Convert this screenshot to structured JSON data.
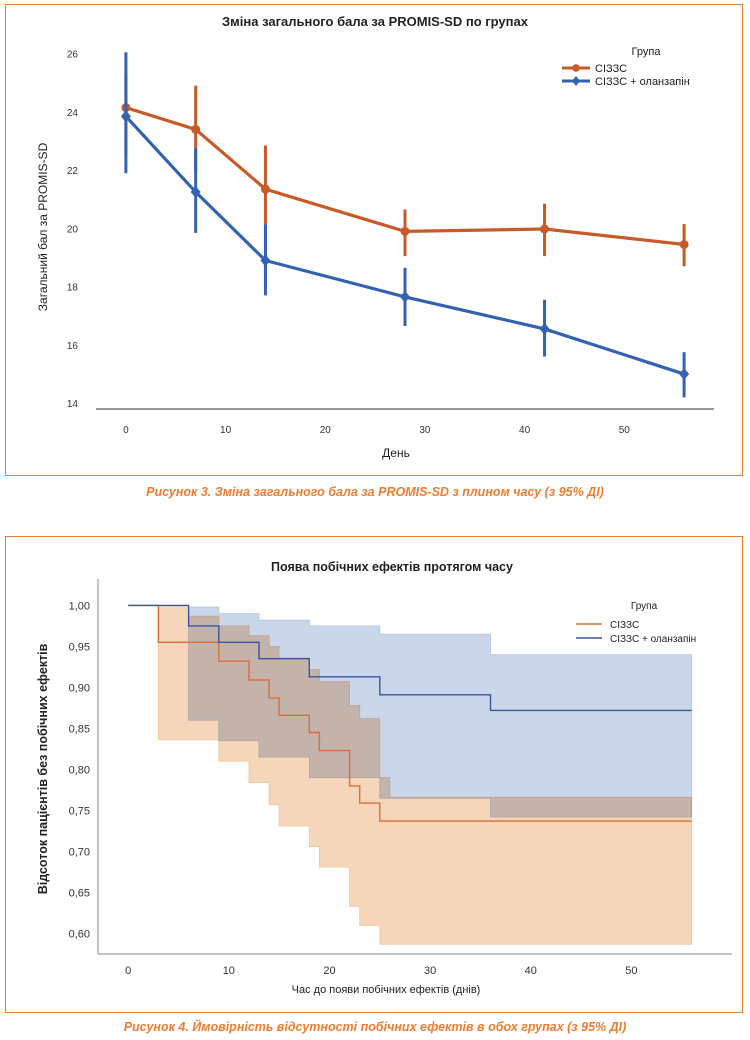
{
  "chart_data": [
    {
      "type": "line",
      "title": "Зміна загального бала за PROMIS-SD по групах",
      "xlabel": "День",
      "ylabel": "Загальний бал за PROMIS-SD",
      "xlim": [
        -3,
        59
      ],
      "ylim": [
        13.8,
        26.3
      ],
      "xticks": [
        0,
        10,
        20,
        30,
        40,
        50
      ],
      "yticks": [
        14,
        16,
        18,
        20,
        22,
        24,
        26
      ],
      "legend_title": "Група",
      "legend_position": "top-right",
      "x": [
        0,
        7,
        14,
        28,
        42,
        56
      ],
      "series": [
        {
          "name": "СІЗЗС",
          "color": "#c85a28",
          "marker": "circle",
          "values": [
            24.15,
            23.4,
            21.35,
            19.9,
            19.98,
            19.45
          ],
          "ci_low": [
            22.5,
            21.9,
            20.15,
            19.05,
            19.05,
            18.7
          ],
          "ci_high": [
            25.3,
            24.9,
            22.85,
            20.65,
            20.85,
            20.15
          ]
        },
        {
          "name": "СІЗЗС + оланзапін",
          "color": "#3362b0",
          "marker": "diamond",
          "values": [
            23.85,
            21.25,
            18.9,
            17.65,
            16.55,
            15.0
          ],
          "ci_low": [
            21.9,
            19.85,
            17.7,
            16.65,
            15.6,
            14.2
          ],
          "ci_high": [
            26.05,
            22.75,
            20.15,
            18.65,
            17.55,
            15.75
          ]
        }
      ]
    },
    {
      "type": "area",
      "title": "Поява побічних ефектів протягом часу",
      "xlabel": "Час до появи побічних ефектів (днів)",
      "ylabel": "Відсоток пацієнтів без побічних ефектів",
      "xlim": [
        -3,
        60
      ],
      "ylim": [
        0.575,
        1.02
      ],
      "xticks": [
        0,
        10,
        20,
        30,
        40,
        50
      ],
      "yticks": [
        "0,60",
        "0,65",
        "0,70",
        "0,75",
        "0,80",
        "0,85",
        "0,90",
        "0,95",
        "1,00"
      ],
      "ytick_values": [
        0.6,
        0.65,
        0.7,
        0.75,
        0.8,
        0.85,
        0.9,
        0.95,
        1.0
      ],
      "legend_title": "Група",
      "legend_position": "top-right",
      "series": [
        {
          "name": "СІЗЗС",
          "color": "#dd6d37",
          "band_color": "#f2c49e",
          "curve": [
            [
              0,
              1.0
            ],
            [
              3,
              0.955
            ],
            [
              9,
              0.932
            ],
            [
              12,
              0.909
            ],
            [
              14,
              0.887
            ],
            [
              15,
              0.866
            ],
            [
              18,
              0.845
            ],
            [
              19,
              0.823
            ],
            [
              22,
              0.78
            ],
            [
              23,
              0.759
            ],
            [
              25,
              0.737
            ],
            [
              56,
              0.737
            ]
          ],
          "lower": [
            [
              3,
              0.836
            ],
            [
              9,
              0.81
            ],
            [
              12,
              0.784
            ],
            [
              14,
              0.757
            ],
            [
              15,
              0.731
            ],
            [
              18,
              0.706
            ],
            [
              19,
              0.681
            ],
            [
              22,
              0.633
            ],
            [
              23,
              0.61
            ],
            [
              25,
              0.587
            ],
            [
              56,
              0.587
            ]
          ],
          "upper": [
            [
              3,
              1.0
            ],
            [
              6,
              0.987
            ],
            [
              9,
              0.975
            ],
            [
              12,
              0.963
            ],
            [
              14,
              0.95
            ],
            [
              15,
              0.936
            ],
            [
              18,
              0.922
            ],
            [
              19,
              0.907
            ],
            [
              22,
              0.878
            ],
            [
              23,
              0.862
            ],
            [
              25,
              0.79
            ],
            [
              26,
              0.766
            ],
            [
              36,
              0.766
            ],
            [
              56,
              0.766
            ]
          ]
        },
        {
          "name": "СІЗЗС + оланзапін",
          "color": "#3a55a4",
          "band_color": "#b3c4e0",
          "curve": [
            [
              0,
              1.0
            ],
            [
              6,
              0.975
            ],
            [
              9,
              0.955
            ],
            [
              13,
              0.935
            ],
            [
              18,
              0.913
            ],
            [
              25,
              0.891
            ],
            [
              36,
              0.872
            ],
            [
              56,
              0.872
            ]
          ],
          "lower": [
            [
              6,
              0.86
            ],
            [
              9,
              0.835
            ],
            [
              13,
              0.815
            ],
            [
              18,
              0.79
            ],
            [
              25,
              0.765
            ],
            [
              36,
              0.742
            ],
            [
              56,
              0.742
            ]
          ],
          "upper": [
            [
              6,
              0.998
            ],
            [
              9,
              0.99
            ],
            [
              13,
              0.982
            ],
            [
              18,
              0.975
            ],
            [
              25,
              0.965
            ],
            [
              36,
              0.94
            ],
            [
              56,
              0.94
            ]
          ]
        }
      ]
    }
  ],
  "captions": {
    "fig3": "Рисунок 3. Зміна загального бала за PROMIS-SD з плином часу (з 95% ДІ)",
    "fig4": "Рисунок 4. Ймовірність відсутності побічних ефектів в обох групах (з 95% ДІ)"
  }
}
